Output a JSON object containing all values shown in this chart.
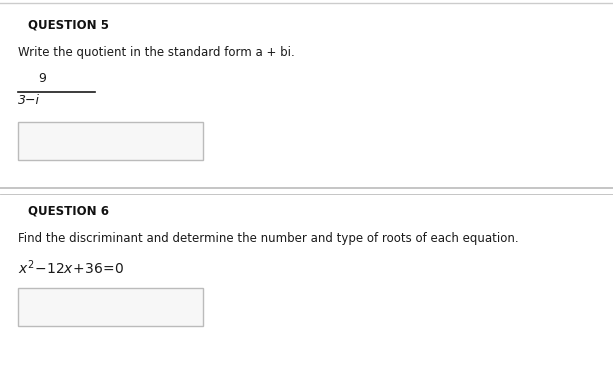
{
  "bg_color": "#ffffff",
  "border_color": "#cccccc",
  "divider_color": "#bbbbbb",
  "q5_label": "QUESTION 5",
  "q5_instruction": "Write the quotient in the standard form a + bi.",
  "q5_numerator": "9",
  "q5_denominator": "3−i",
  "q6_label": "QUESTION 6",
  "q6_instruction": "Find the discriminant and determine the number and type of roots of each equation.",
  "q6_equation_plain": "x",
  "text_color": "#1a1a1a",
  "label_color": "#111111",
  "box_edge_color": "#bbbbbb",
  "box_face_color": "#f7f7f7"
}
